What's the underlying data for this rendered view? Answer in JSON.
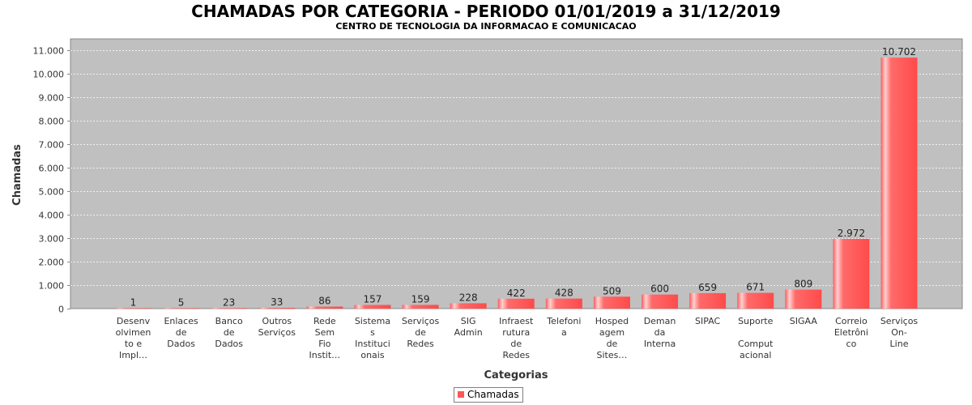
{
  "chart_data": {
    "type": "bar",
    "title": "CHAMADAS POR CATEGORIA - PERIODO 01/01/2019 a 31/12/2019",
    "subtitle": "CENTRO DE TECNOLOGIA DA INFORMACAO E COMUNICACAO",
    "xlabel": "Categorias",
    "ylabel": "Chamadas",
    "ylim": [
      0,
      11500
    ],
    "yticks": [
      0,
      1000,
      2000,
      3000,
      4000,
      5000,
      6000,
      7000,
      8000,
      9000,
      10000,
      11000
    ],
    "ytick_labels": [
      "0",
      "1.000",
      "2.000",
      "3.000",
      "4.000",
      "5.000",
      "6.000",
      "7.000",
      "8.000",
      "9.000",
      "10.000",
      "11.000"
    ],
    "grid": true,
    "legend_position": "bottom",
    "bar_color": "#ff5555",
    "plot_background": "#c0c0c0",
    "categories": [
      "Desenvolvimento e Impl…",
      "Enlaces de Dados",
      "Banco de Dados",
      "Outros Serviços",
      "Rede Sem Fio Instit…",
      "Sistemas Institucionais",
      "Serviços de Redes",
      "SIG Admin",
      "Infraestrutura de Redes",
      "Telefonia",
      "Hospedagem de Sites…",
      "Demanda Interna",
      "SIPAC",
      "Suporte Computacional",
      "SIGAA",
      "Correio Eletrônico",
      "Serviços On-Line"
    ],
    "category_label_lines": [
      [
        "Desenv",
        "olvimen",
        "to e",
        "Impl…"
      ],
      [
        "Enlaces",
        "de",
        "Dados"
      ],
      [
        "Banco",
        "de",
        "Dados"
      ],
      [
        "Outros",
        "Serviços"
      ],
      [
        "Rede",
        "Sem",
        "Fio",
        "Instit…"
      ],
      [
        "Sistema",
        "s",
        "Instituci",
        "onais"
      ],
      [
        "Serviços",
        "de",
        "Redes"
      ],
      [
        "SIG",
        "Admin"
      ],
      [
        "Infraest",
        "rutura",
        "de",
        "Redes"
      ],
      [
        "Telefoni",
        "a"
      ],
      [
        "Hosped",
        "agem",
        "de",
        "Sites…"
      ],
      [
        "Deman",
        "da",
        "Interna"
      ],
      [
        "SIPAC"
      ],
      [
        "Suporte",
        "",
        "Comput",
        "acional"
      ],
      [
        "SIGAA"
      ],
      [
        "Correio",
        "Eletrôni",
        "co"
      ],
      [
        "Serviços",
        "On-",
        "Line"
      ]
    ],
    "series": [
      {
        "name": "Chamadas",
        "values": [
          1,
          5,
          23,
          33,
          86,
          157,
          159,
          228,
          422,
          428,
          509,
          600,
          659,
          671,
          809,
          2972,
          10702
        ],
        "value_labels": [
          "1",
          "5",
          "23",
          "33",
          "86",
          "157",
          "159",
          "228",
          "422",
          "428",
          "509",
          "600",
          "659",
          "671",
          "809",
          "2.972",
          "10.702"
        ]
      }
    ]
  }
}
